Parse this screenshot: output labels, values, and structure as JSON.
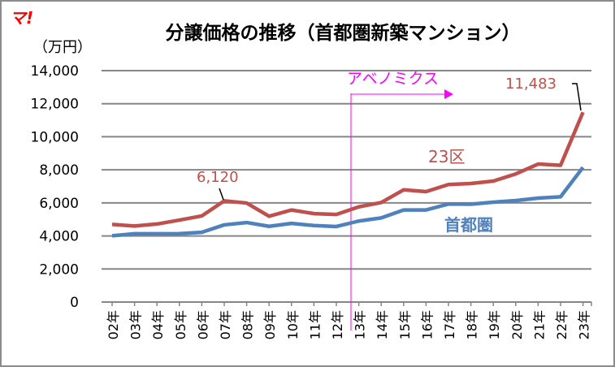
{
  "logo_text": "マ!",
  "chart_data": {
    "type": "line",
    "title": "分譲価格の推移（首都圏新築マンション）",
    "ylabel": "（万円）",
    "ylim": [
      0,
      14000
    ],
    "yticks": [
      "0",
      "2,000",
      "4,000",
      "6,000",
      "8,000",
      "10,000",
      "12,000",
      "14,000"
    ],
    "ytick_values": [
      0,
      2000,
      4000,
      6000,
      8000,
      10000,
      12000,
      14000
    ],
    "grid": true,
    "categories": [
      "02年",
      "03年",
      "04年",
      "05年",
      "06年",
      "07年",
      "08年",
      "09年",
      "10年",
      "11年",
      "12年",
      "13年",
      "14年",
      "15年",
      "16年",
      "17年",
      "18年",
      "19年",
      "20年",
      "21年",
      "22年",
      "23年"
    ],
    "series": [
      {
        "name": "23区",
        "color": "#c0504d",
        "values": [
          4700,
          4600,
          4720,
          4960,
          5210,
          6120,
          5990,
          5190,
          5570,
          5350,
          5300,
          5760,
          6020,
          6790,
          6680,
          7110,
          7170,
          7320,
          7750,
          8350,
          8270,
          11483
        ]
      },
      {
        "name": "首都圏",
        "color": "#4f81bd",
        "values": [
          4010,
          4130,
          4130,
          4140,
          4220,
          4670,
          4810,
          4580,
          4760,
          4630,
          4570,
          4900,
          5090,
          5570,
          5570,
          5930,
          5920,
          6040,
          6140,
          6290,
          6370,
          8150
        ]
      }
    ],
    "data_labels": [
      {
        "series": "23区",
        "category": "07年",
        "text": "6,120"
      },
      {
        "series": "23区",
        "category": "23年",
        "text": "11,483"
      }
    ],
    "annotation": {
      "text": "アベノミクス",
      "category": "13年",
      "color": "#ff00ff"
    }
  }
}
